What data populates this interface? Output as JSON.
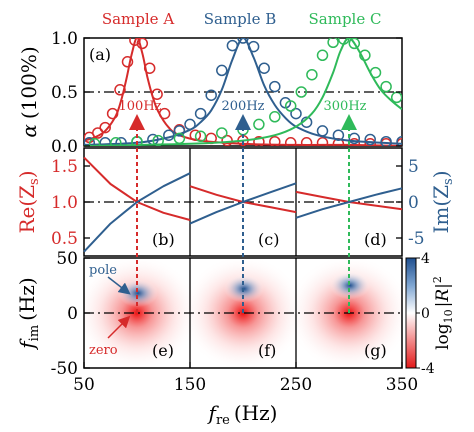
{
  "colors": {
    "sample_a": "#d62b2b",
    "sample_b": "#2f5f8f",
    "sample_c": "#2fba5a",
    "frame": "#000000",
    "imag_axis": "#2f5f8f",
    "real_axis": "#d62b2b"
  },
  "chart_data": [
    {
      "type": "line",
      "panel": "(a)",
      "ylabel": "α (100%)",
      "ylim": [
        0,
        1
      ],
      "xlim": [
        50,
        350
      ],
      "yticks": [
        "0.0",
        "0.5",
        "1.0"
      ],
      "reference_line": 0.5,
      "series": [
        {
          "name": "Sample A",
          "peak_label": "100Hz",
          "peak_x": 100,
          "color_key": "sample_a",
          "fit": {
            "x": [
              50,
              60,
              70,
              80,
              85,
              90,
              95,
              100,
              105,
              110,
              115,
              120,
              130,
              140,
              160,
              200,
              250,
              300,
              350
            ],
            "y": [
              0.05,
              0.08,
              0.14,
              0.28,
              0.42,
              0.62,
              0.85,
              1.0,
              0.86,
              0.63,
              0.45,
              0.32,
              0.17,
              0.1,
              0.05,
              0.02,
              0.01,
              0.01,
              0.0
            ]
          },
          "measured": {
            "x": [
              55,
              63,
              70,
              77,
              84,
              91,
              98,
              105,
              112,
              119,
              126,
              140,
              155,
              170,
              185,
              200,
              215,
              230,
              245,
              260,
              275,
              290,
              305,
              320,
              335,
              350
            ],
            "y": [
              0.08,
              0.12,
              0.17,
              0.3,
              0.52,
              0.78,
              0.98,
              0.95,
              0.72,
              0.48,
              0.3,
              0.15,
              0.1,
              0.07,
              0.05,
              0.05,
              0.04,
              0.04,
              0.03,
              0.03,
              0.03,
              0.02,
              0.02,
              0.02,
              0.02,
              0.02
            ]
          }
        },
        {
          "name": "Sample B",
          "peak_label": "200Hz",
          "peak_x": 200,
          "color_key": "sample_b",
          "fit": {
            "x": [
              50,
              100,
              130,
              150,
              160,
              170,
              180,
              190,
              200,
              210,
              220,
              230,
              240,
              250,
              270,
              300,
              350
            ],
            "y": [
              0.01,
              0.03,
              0.08,
              0.15,
              0.22,
              0.33,
              0.52,
              0.8,
              1.0,
              0.82,
              0.56,
              0.38,
              0.26,
              0.18,
              0.1,
              0.05,
              0.02
            ]
          },
          "measured": {
            "x": [
              55,
              70,
              85,
              100,
              115,
              130,
              140,
              150,
              160,
              170,
              180,
              190,
              200,
              210,
              220,
              230,
              240,
              250,
              260,
              275,
              290,
              305,
              320,
              335,
              350
            ],
            "y": [
              0.03,
              0.03,
              0.03,
              0.04,
              0.06,
              0.1,
              0.14,
              0.2,
              0.3,
              0.47,
              0.7,
              0.93,
              1.0,
              0.92,
              0.72,
              0.55,
              0.4,
              0.3,
              0.22,
              0.14,
              0.1,
              0.07,
              0.06,
              0.04,
              0.04
            ]
          }
        },
        {
          "name": "Sample C",
          "peak_label": "300Hz",
          "peak_x": 300,
          "color_key": "sample_c",
          "fit": {
            "x": [
              50,
              150,
              200,
              230,
              250,
              265,
              275,
              285,
              292,
              300,
              310,
              320,
              330,
              340,
              350
            ],
            "y": [
              0.0,
              0.02,
              0.05,
              0.1,
              0.18,
              0.3,
              0.45,
              0.68,
              0.88,
              1.0,
              0.87,
              0.68,
              0.52,
              0.42,
              0.34
            ]
          },
          "measured": {
            "x": [
              60,
              80,
              100,
              120,
              140,
              160,
              180,
              200,
              215,
              230,
              245,
              255,
              265,
              275,
              285,
              295,
              305,
              315,
              325,
              335,
              345
            ],
            "y": [
              0.02,
              0.03,
              0.04,
              0.05,
              0.07,
              0.09,
              0.12,
              0.15,
              0.2,
              0.27,
              0.37,
              0.5,
              0.66,
              0.84,
              0.96,
              0.99,
              0.95,
              0.84,
              0.68,
              0.55,
              0.45
            ]
          }
        }
      ]
    },
    {
      "type": "line",
      "panels": [
        "(b)",
        "(c)",
        "(d)"
      ],
      "ylabel_left": "Re(Z_s)",
      "ylabel_right": "Im(Z_s)",
      "ylim_left": [
        0.25,
        1.75
      ],
      "ylim_right": [
        -7.5,
        7.5
      ],
      "yticks_left": [
        "0.5",
        "1.0",
        "1.5"
      ],
      "yticks_right": [
        "-5",
        "0",
        "5"
      ],
      "reference_line": 1.0,
      "subplots": [
        {
          "xlim": [
            50,
            150
          ],
          "re": {
            "x": [
              50,
              75,
              100,
              125,
              150
            ],
            "y": [
              1.62,
              1.25,
              1.0,
              0.85,
              0.75
            ]
          },
          "im": {
            "x": [
              50,
              75,
              100,
              125,
              150
            ],
            "y": [
              -6.9,
              -3.0,
              0,
              2.2,
              4.0
            ]
          }
        },
        {
          "xlim": [
            150,
            250
          ],
          "re": {
            "x": [
              150,
              175,
              200,
              225,
              250
            ],
            "y": [
              1.22,
              1.1,
              1.0,
              0.93,
              0.86
            ]
          },
          "im": {
            "x": [
              150,
              175,
              200,
              225,
              250
            ],
            "y": [
              -3.0,
              -1.4,
              0,
              1.3,
              2.6
            ]
          }
        },
        {
          "xlim": [
            250,
            350
          ],
          "re": {
            "x": [
              250,
              275,
              300,
              325,
              350
            ],
            "y": [
              1.14,
              1.07,
              1.0,
              0.95,
              0.9
            ]
          },
          "im": {
            "x": [
              250,
              275,
              300,
              325,
              350
            ],
            "y": [
              -2.2,
              -1.0,
              0,
              1.0,
              1.9
            ]
          }
        }
      ]
    },
    {
      "type": "heatmap",
      "panels": [
        "(e)",
        "(f)",
        "(g)"
      ],
      "xlabel": "f_re (Hz)",
      "ylabel": "f_im (Hz)",
      "xticks": [
        "50",
        "150",
        "250",
        "350"
      ],
      "yticks": [
        "-50",
        "0",
        "50"
      ],
      "ylim": [
        -50,
        50
      ],
      "colorbar": {
        "label": "log10|R|^2",
        "ticks": [
          "4",
          "0",
          "-4"
        ],
        "range": [
          -4,
          4
        ]
      },
      "zeros": [
        {
          "x": 100,
          "y": 0
        },
        {
          "x": 200,
          "y": 0
        },
        {
          "x": 300,
          "y": 0
        }
      ],
      "poles": [
        {
          "x": 100,
          "y": 18
        },
        {
          "x": 200,
          "y": 22
        },
        {
          "x": 300,
          "y": 25
        }
      ],
      "annotations": [
        "pole",
        "zero"
      ]
    }
  ],
  "labels": {
    "sample_a": "Sample A",
    "sample_b": "Sample B",
    "sample_c": "Sample C",
    "panel_a": "(a)",
    "panel_b": "(b)",
    "panel_c": "(c)",
    "panel_d": "(d)",
    "panel_e": "(e)",
    "panel_f": "(f)",
    "panel_g": "(g)",
    "freq_a": "100Hz",
    "freq_b": "200Hz",
    "freq_c": "300Hz",
    "pole": "pole",
    "zero": "zero",
    "alpha_sym": "α",
    "alpha_unit": "(100%)",
    "re_main": "Re(Z",
    "re_sub": "s",
    "close_paren": ")",
    "im_main": "Im(Z",
    "im_sub": "s",
    "fim_main": "f",
    "fim_sub": "im",
    "hz_unit": "(Hz)",
    "fre_main": "f",
    "fre_sub": "re",
    "cb_log": "log",
    "cb_sub": "10",
    "cb_abs": "|R|",
    "cb_sup": "2",
    "a_ticks": [
      "0.0",
      "0.5",
      "1.0"
    ],
    "re_ticks": [
      "0.5",
      "1.0",
      "1.5"
    ],
    "im_ticks": [
      "-5",
      "0",
      "5"
    ],
    "fim_ticks": [
      "-50",
      "0",
      "50"
    ],
    "x_ticks": [
      "50",
      "150",
      "250",
      "350"
    ],
    "cb_ticks": [
      "4",
      "0",
      "-4"
    ]
  }
}
